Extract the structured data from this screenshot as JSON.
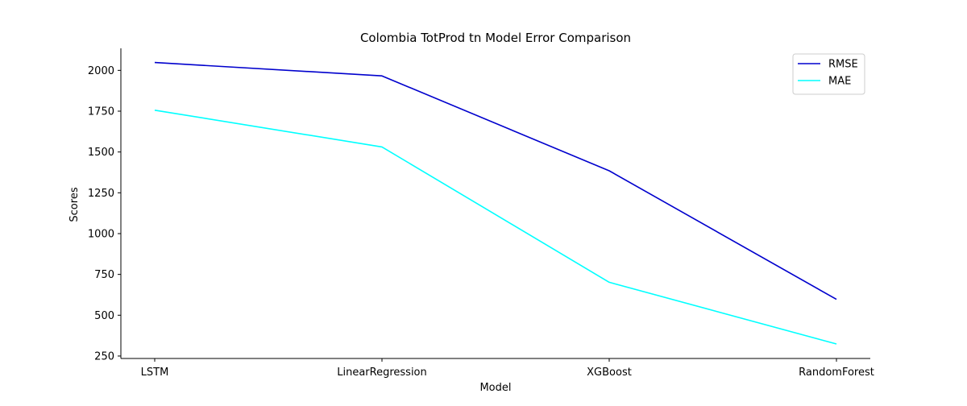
{
  "chart_data": {
    "type": "line",
    "title": "Colombia TotProd tn Model Error Comparison",
    "xlabel": "Model",
    "ylabel": "Scores",
    "categories": [
      "LSTM",
      "LinearRegression",
      "XGBoost",
      "RandomForest"
    ],
    "series": [
      {
        "name": "RMSE",
        "color": "#0000cd",
        "values": [
          2048,
          1966,
          1385,
          597
        ]
      },
      {
        "name": "MAE",
        "color": "#00ffff",
        "values": [
          1756,
          1531,
          702,
          324
        ]
      }
    ],
    "ylim": [
      235,
      2135
    ],
    "yticks": [
      250,
      500,
      750,
      1000,
      1250,
      1500,
      1750,
      2000
    ],
    "grid": false,
    "legend": "top-right"
  }
}
